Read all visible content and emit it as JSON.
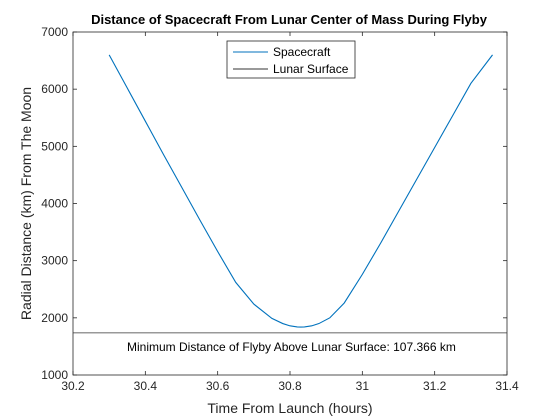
{
  "chart_data": {
    "type": "line",
    "title": "Distance of Spacecraft From Lunar Center of Mass During Flyby",
    "xlabel": "Time From Launch (hours)",
    "ylabel": "Radial Distance (km) From The Moon",
    "xlim": [
      30.2,
      31.4
    ],
    "ylim": [
      1000,
      7000
    ],
    "xticks": [
      "30.2",
      "30.4",
      "30.6",
      "30.8",
      "31",
      "31.2",
      "31.4"
    ],
    "yticks": [
      "1000",
      "2000",
      "3000",
      "4000",
      "5000",
      "6000",
      "7000"
    ],
    "grid": false,
    "legend_placement": "top-center",
    "series": [
      {
        "name": "Spacecraft",
        "color": "#0072BD",
        "x": [
          30.3,
          30.35,
          30.4,
          30.45,
          30.5,
          30.55,
          30.6,
          30.65,
          30.7,
          30.75,
          30.78,
          30.8,
          30.82,
          30.83,
          30.84,
          30.86,
          30.88,
          30.91,
          30.95,
          31.0,
          31.05,
          31.1,
          31.15,
          31.2,
          31.25,
          31.3,
          31.36
        ],
        "y": [
          6600,
          6020,
          5440,
          4860,
          4290,
          3720,
          3160,
          2620,
          2240,
          1990,
          1900,
          1860,
          1841,
          1838,
          1841,
          1860,
          1900,
          2000,
          2260,
          2760,
          3300,
          3860,
          4420,
          4980,
          5540,
          6100,
          6600
        ]
      },
      {
        "name": "Lunar Surface",
        "color": "#333333",
        "x": [
          30.2,
          31.4
        ],
        "y": [
          1737,
          1737
        ]
      }
    ],
    "annotation": "Minimum Distance of Flyby Above Lunar Surface: 107.366 km"
  }
}
